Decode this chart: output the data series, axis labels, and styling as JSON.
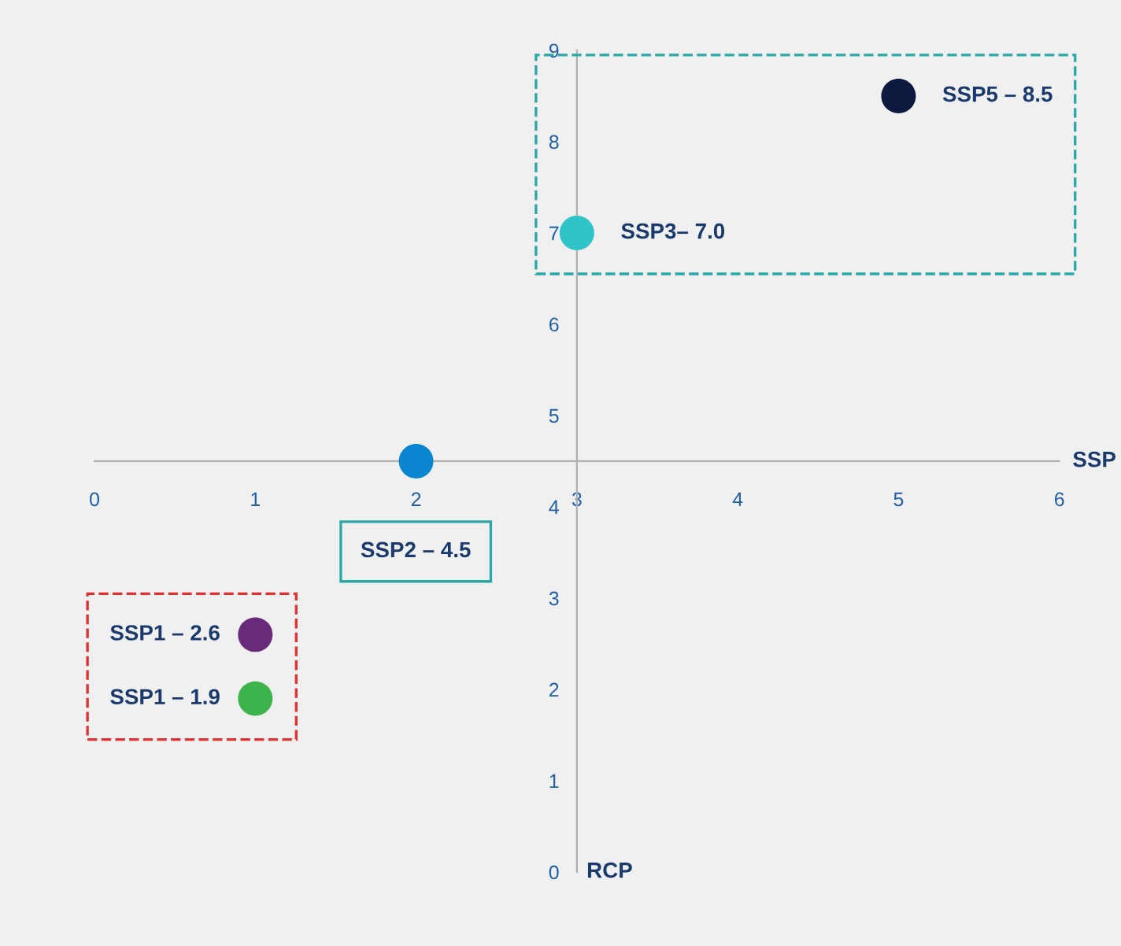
{
  "chart_data": {
    "type": "scatter",
    "xlabel": "SSP",
    "ylabel": "RCP",
    "x": [
      1,
      1,
      2,
      3,
      5
    ],
    "values": [
      1.9,
      2.6,
      4.5,
      7.0,
      8.5
    ],
    "colors": [
      "#3cb44b",
      "#6a2a7a",
      "#0a85d0",
      "#2ec4c8",
      "#0d1a3f"
    ],
    "xlim": [
      0,
      6
    ],
    "ylim": [
      0,
      9
    ],
    "xticks": [
      0,
      1,
      2,
      3,
      4,
      5,
      6
    ],
    "yticks": [
      0,
      1,
      2,
      3,
      4,
      5,
      6,
      7,
      8,
      9
    ],
    "grid": false,
    "marker": "circle",
    "annotations": [
      {
        "text": "SSP1 – 1.9",
        "x": 1,
        "y": 1.9
      },
      {
        "text": "SSP1 – 2.6",
        "x": 1,
        "y": 2.6
      },
      "SSP2 – 4.5",
      {
        "text": "SSP3– 7.0",
        "x": 3,
        "y": 7.0
      },
      {
        "text": "SSP5 – 8.5",
        "x": 5,
        "y": 8.5
      }
    ]
  }
}
